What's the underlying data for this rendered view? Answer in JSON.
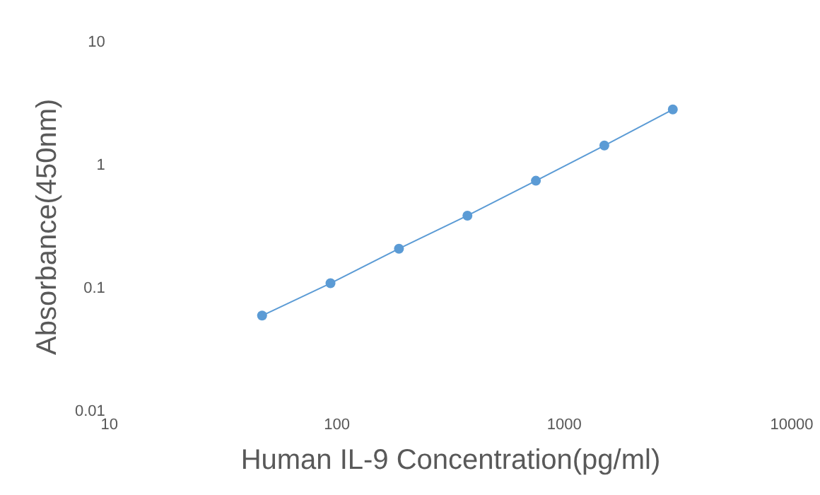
{
  "chart_data": {
    "type": "line",
    "xlabel": "Human IL-9 Concentration(pg/ml)",
    "ylabel": "Absorbance(450nm)",
    "x": [
      46.9,
      93.75,
      187.5,
      375,
      750,
      1500,
      3000
    ],
    "series": [
      {
        "color": "#5b9bd5",
        "values": [
          0.06,
          0.11,
          0.21,
          0.39,
          0.75,
          1.45,
          2.85
        ]
      }
    ],
    "xlim": [
      10,
      10000
    ],
    "xticks": [
      10,
      100,
      1000,
      10000
    ],
    "ylim": [
      0.01,
      10
    ],
    "yticks": [
      0.01,
      0.1,
      1,
      10
    ],
    "log": "xy",
    "grid": false,
    "legend": false,
    "marker": "circle",
    "line_style": "solid"
  }
}
